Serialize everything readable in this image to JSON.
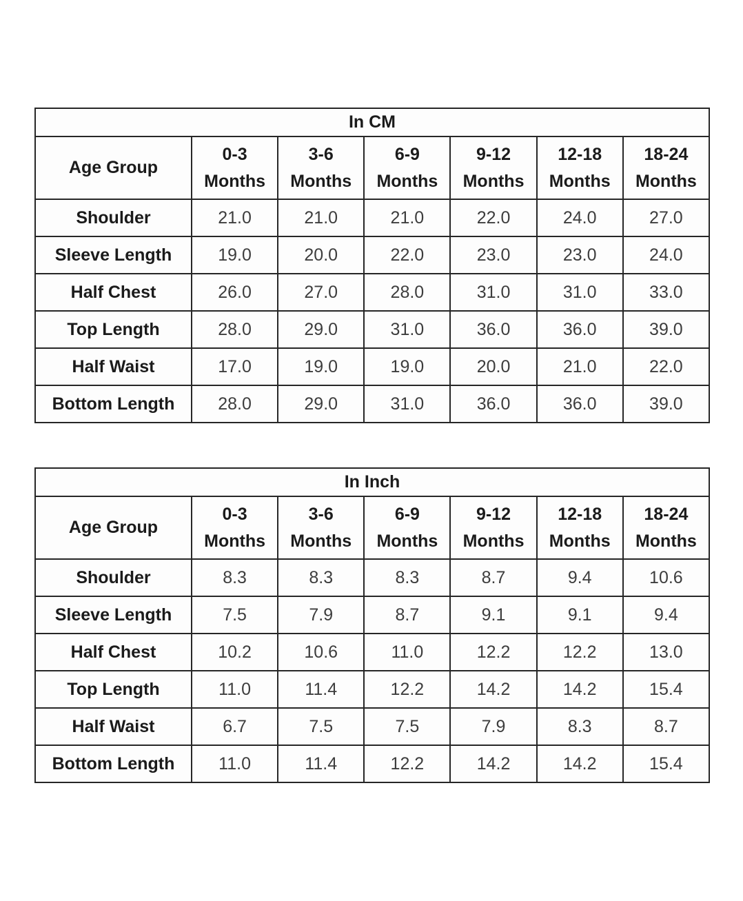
{
  "theme": {
    "background": "#ffffff",
    "border_color": "#262626",
    "header_text": "#1b1b1b",
    "value_text": "#3d3d3d"
  },
  "tables": [
    {
      "id": "cm",
      "title": "In CM",
      "corner_label": "Age Group",
      "columns": [
        {
          "range": "0-3",
          "unit": "Months"
        },
        {
          "range": "3-6",
          "unit": "Months"
        },
        {
          "range": "6-9",
          "unit": "Months"
        },
        {
          "range": "9-12",
          "unit": "Months"
        },
        {
          "range": "12-18",
          "unit": "Months"
        },
        {
          "range": "18-24",
          "unit": "Months"
        }
      ],
      "rows": [
        {
          "label": "Shoulder",
          "values": [
            "21.0",
            "21.0",
            "21.0",
            "22.0",
            "24.0",
            "27.0"
          ]
        },
        {
          "label": "Sleeve Length",
          "values": [
            "19.0",
            "20.0",
            "22.0",
            "23.0",
            "23.0",
            "24.0"
          ]
        },
        {
          "label": "Half Chest",
          "values": [
            "26.0",
            "27.0",
            "28.0",
            "31.0",
            "31.0",
            "33.0"
          ]
        },
        {
          "label": "Top Length",
          "values": [
            "28.0",
            "29.0",
            "31.0",
            "36.0",
            "36.0",
            "39.0"
          ]
        },
        {
          "label": "Half Waist",
          "values": [
            "17.0",
            "19.0",
            "19.0",
            "20.0",
            "21.0",
            "22.0"
          ]
        },
        {
          "label": "Bottom Length",
          "values": [
            "28.0",
            "29.0",
            "31.0",
            "36.0",
            "36.0",
            "39.0"
          ]
        }
      ]
    },
    {
      "id": "inch",
      "title": "In Inch",
      "corner_label": "Age Group",
      "columns": [
        {
          "range": "0-3",
          "unit": "Months"
        },
        {
          "range": "3-6",
          "unit": "Months"
        },
        {
          "range": "6-9",
          "unit": "Months"
        },
        {
          "range": "9-12",
          "unit": "Months"
        },
        {
          "range": "12-18",
          "unit": "Months"
        },
        {
          "range": "18-24",
          "unit": "Months"
        }
      ],
      "rows": [
        {
          "label": "Shoulder",
          "values": [
            "8.3",
            "8.3",
            "8.3",
            "8.7",
            "9.4",
            "10.6"
          ]
        },
        {
          "label": "Sleeve Length",
          "values": [
            "7.5",
            "7.9",
            "8.7",
            "9.1",
            "9.1",
            "9.4"
          ]
        },
        {
          "label": "Half Chest",
          "values": [
            "10.2",
            "10.6",
            "11.0",
            "12.2",
            "12.2",
            "13.0"
          ]
        },
        {
          "label": "Top Length",
          "values": [
            "11.0",
            "11.4",
            "12.2",
            "14.2",
            "14.2",
            "15.4"
          ]
        },
        {
          "label": "Half Waist",
          "values": [
            "6.7",
            "7.5",
            "7.5",
            "7.9",
            "8.3",
            "8.7"
          ]
        },
        {
          "label": "Bottom Length",
          "values": [
            "11.0",
            "11.4",
            "12.2",
            "14.2",
            "14.2",
            "15.4"
          ]
        }
      ]
    }
  ],
  "chart_data": [
    {
      "type": "table",
      "title": "In CM",
      "categories": [
        "0-3 Months",
        "3-6 Months",
        "6-9 Months",
        "9-12 Months",
        "12-18 Months",
        "18-24 Months"
      ],
      "series": [
        {
          "name": "Shoulder",
          "values": [
            21.0,
            21.0,
            21.0,
            22.0,
            24.0,
            27.0
          ]
        },
        {
          "name": "Sleeve Length",
          "values": [
            19.0,
            20.0,
            22.0,
            23.0,
            23.0,
            24.0
          ]
        },
        {
          "name": "Half Chest",
          "values": [
            26.0,
            27.0,
            28.0,
            31.0,
            31.0,
            33.0
          ]
        },
        {
          "name": "Top Length",
          "values": [
            28.0,
            29.0,
            31.0,
            36.0,
            36.0,
            39.0
          ]
        },
        {
          "name": "Half Waist",
          "values": [
            17.0,
            19.0,
            19.0,
            20.0,
            21.0,
            22.0
          ]
        },
        {
          "name": "Bottom Length",
          "values": [
            28.0,
            29.0,
            31.0,
            36.0,
            36.0,
            39.0
          ]
        }
      ]
    },
    {
      "type": "table",
      "title": "In Inch",
      "categories": [
        "0-3 Months",
        "3-6 Months",
        "6-9 Months",
        "9-12 Months",
        "12-18 Months",
        "18-24 Months"
      ],
      "series": [
        {
          "name": "Shoulder",
          "values": [
            8.3,
            8.3,
            8.3,
            8.7,
            9.4,
            10.6
          ]
        },
        {
          "name": "Sleeve Length",
          "values": [
            7.5,
            7.9,
            8.7,
            9.1,
            9.1,
            9.4
          ]
        },
        {
          "name": "Half Chest",
          "values": [
            10.2,
            10.6,
            11.0,
            12.2,
            12.2,
            13.0
          ]
        },
        {
          "name": "Top Length",
          "values": [
            11.0,
            11.4,
            12.2,
            14.2,
            14.2,
            15.4
          ]
        },
        {
          "name": "Half Waist",
          "values": [
            6.7,
            7.5,
            7.5,
            7.9,
            8.3,
            8.7
          ]
        },
        {
          "name": "Bottom Length",
          "values": [
            11.0,
            11.4,
            12.2,
            14.2,
            14.2,
            15.4
          ]
        }
      ]
    }
  ]
}
